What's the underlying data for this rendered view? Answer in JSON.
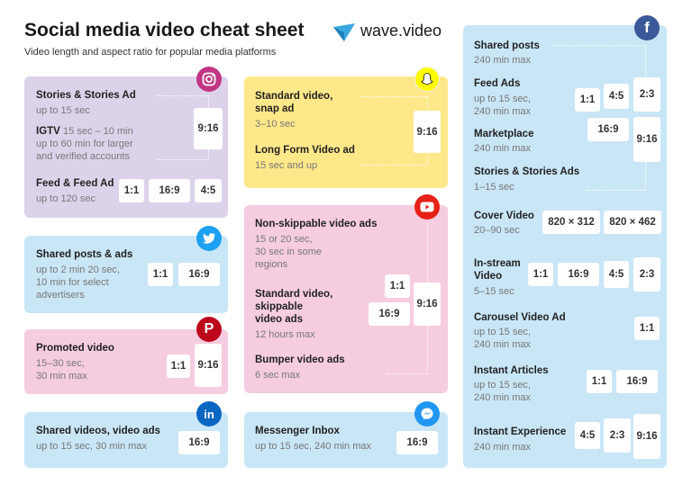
{
  "header": {
    "title": "Social media video cheat sheet",
    "subtitle": "Video length and aspect ratio for popular media platforms",
    "brand": "wave.video"
  },
  "colors": {
    "purple": "#dcd3ea",
    "yellow": "#ffe88a",
    "blue": "#c9e6f6",
    "pink": "#f5cce0"
  },
  "instagram": {
    "icon": "instagram-icon",
    "stories_title": "Stories & Stories Ad",
    "stories_sub": "up to 15 sec",
    "igtv_title": "IGTV",
    "igtv_sub1": "15 sec – 10 min",
    "igtv_sub2": "up to 60 min for larger",
    "igtv_sub3": "and verified accounts",
    "ratio_916": "9:16",
    "feed_title": "Feed & Feed Ad",
    "feed_sub": "up to 120 sec",
    "r1": "1:1",
    "r2": "16:9",
    "r3": "4:5"
  },
  "twitter": {
    "icon": "twitter-icon",
    "title": "Shared posts & ads",
    "sub1": "up to 2 min 20 sec,",
    "sub2": "10 min for select",
    "sub3": "advertisers",
    "r1": "1:1",
    "r2": "16:9"
  },
  "pinterest": {
    "icon": "pinterest-icon",
    "title": "Promoted video",
    "sub1": "15–30 sec,",
    "sub2": "30 min max",
    "r1": "1:1",
    "r2": "9:16"
  },
  "linkedin": {
    "icon": "linkedin-icon",
    "title": "Shared videos, video ads",
    "sub": "up to 15 sec, 30 min max",
    "r1": "16:9"
  },
  "snapchat": {
    "icon": "snapchat-icon",
    "std_title1": "Standard video,",
    "std_title2": "snap ad",
    "std_sub": "3–10 sec",
    "long_title": "Long Form Video ad",
    "long_sub": "15 sec and up",
    "r1": "9:16"
  },
  "youtube": {
    "icon": "youtube-icon",
    "ns_title": "Non-skippable video ads",
    "ns_sub1": "15 or 20 sec,",
    "ns_sub2": "30 sec in some",
    "ns_sub3": "regions",
    "sk_title1": "Standard video,",
    "sk_title2": "skippable",
    "sk_title3": "video ads",
    "sk_sub": "12 hours max",
    "bump_title": "Bumper video ads",
    "bump_sub": "6 sec max",
    "r1": "1:1",
    "r2": "16:9",
    "r3": "9:16"
  },
  "messenger": {
    "icon": "messenger-icon",
    "title": "Messenger Inbox",
    "sub": "up to 15 sec, 240 min max",
    "r1": "16:9"
  },
  "facebook": {
    "icon": "facebook-icon",
    "shared_title": "Shared posts",
    "shared_sub": "240 min max",
    "feed_title": "Feed Ads",
    "feed_sub1": "up to 15 sec,",
    "feed_sub2": "240 min max",
    "market_title": "Marketplace",
    "market_sub": "240 min max",
    "stories_title": "Stories & Stories Ads",
    "stories_sub": "1–15 sec",
    "r_feed1": "1:1",
    "r_feed2": "4:5",
    "r_feed3": "2:3",
    "r_feed4": "16:9",
    "r_feed5": "9:16",
    "cover_title": "Cover Video",
    "cover_sub": "20–90 sec",
    "cover_r1": "820 × 312",
    "cover_r2": "820 × 462",
    "instream_title1": "In-stream",
    "instream_title2": "Video",
    "instream_sub": "5–15 sec",
    "instream_r1": "1:1",
    "instream_r2": "16:9",
    "instream_r3": "4:5",
    "instream_r4": "2:3",
    "carousel_title": "Carousel Video Ad",
    "carousel_sub1": "up to 15 sec,",
    "carousel_sub2": "240 min max",
    "carousel_r1": "1:1",
    "articles_title": "Instant Articles",
    "articles_sub1": "up to 15 sec,",
    "articles_sub2": "240 min max",
    "articles_r1": "1:1",
    "articles_r2": "16:9",
    "exp_title": "Instant Experience",
    "exp_sub": "240 min max",
    "exp_r1": "4:5",
    "exp_r2": "2:3",
    "exp_r3": "9:16"
  }
}
